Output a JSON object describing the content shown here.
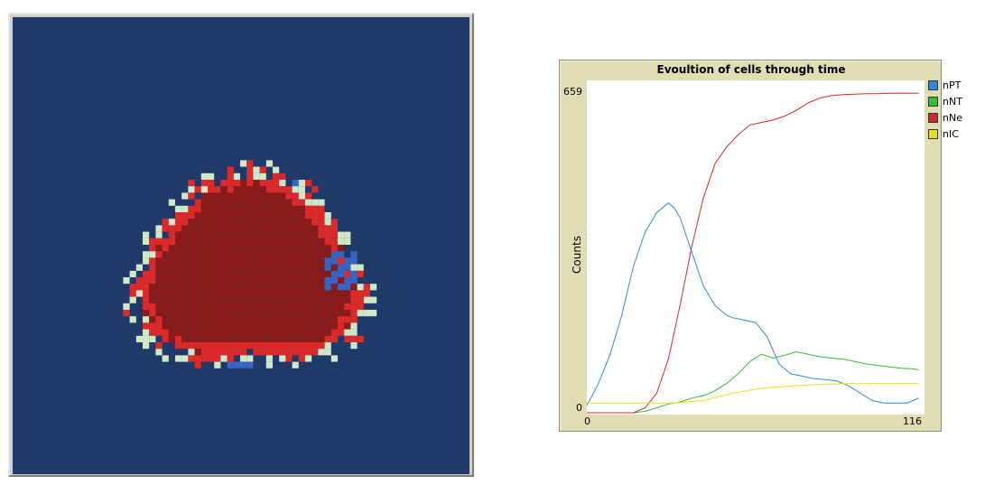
{
  "world": {
    "colors": {
      "background": "#1f3969",
      "necrotic_core": "#8a1b1b",
      "necrotic_rim": "#dc2a2a",
      "proliferative": "#cfe8c8",
      "immune": "#3765c4"
    }
  },
  "plot": {
    "title": "Evoultion of cells through time",
    "ylabel": "Counts",
    "y_max_label": "659",
    "y_min_label": "0",
    "x_min_label": "0",
    "x_max_label": "116",
    "legend": [
      {
        "name": "nPT",
        "color": "#2e8ad8"
      },
      {
        "name": "nNT",
        "color": "#2ec02e"
      },
      {
        "name": "nNe",
        "color": "#dc2626"
      },
      {
        "name": "nIC",
        "color": "#e6e21a"
      }
    ]
  },
  "chart_data": {
    "type": "line",
    "title": "Evoultion of cells through time",
    "xlabel": "",
    "ylabel": "Counts",
    "xlim": [
      0,
      116
    ],
    "ylim": [
      0,
      659
    ],
    "grid": false,
    "legend_position": "right",
    "series": [
      {
        "name": "nPT",
        "color": "#2e8ad8",
        "x": [
          0,
          4,
          8,
          12,
          16,
          20,
          24,
          28,
          30,
          32,
          36,
          40,
          44,
          48,
          50,
          54,
          58,
          62,
          66,
          70,
          74,
          78,
          82,
          86,
          90,
          94,
          98,
          102,
          106,
          110,
          114
        ],
        "y": [
          15,
          60,
          120,
          200,
          300,
          370,
          410,
          430,
          420,
          400,
          330,
          260,
          220,
          200,
          195,
          190,
          185,
          155,
          100,
          80,
          75,
          70,
          68,
          65,
          55,
          40,
          25,
          20,
          20,
          20,
          30
        ]
      },
      {
        "name": "nNT",
        "color": "#2ec02e",
        "x": [
          0,
          4,
          8,
          12,
          16,
          20,
          24,
          28,
          32,
          36,
          40,
          44,
          48,
          52,
          56,
          60,
          64,
          68,
          72,
          76,
          80,
          84,
          88,
          92,
          96,
          100,
          104,
          108,
          112,
          114
        ],
        "y": [
          0,
          0,
          0,
          0,
          0,
          3,
          10,
          18,
          22,
          30,
          35,
          45,
          60,
          80,
          105,
          120,
          112,
          118,
          125,
          120,
          115,
          112,
          110,
          105,
          100,
          97,
          94,
          91,
          90,
          88
        ]
      },
      {
        "name": "nNe",
        "color": "#dc2626",
        "x": [
          0,
          4,
          8,
          12,
          16,
          20,
          24,
          28,
          32,
          36,
          40,
          44,
          48,
          52,
          56,
          60,
          64,
          68,
          72,
          76,
          80,
          84,
          88,
          92,
          96,
          100,
          104,
          108,
          112,
          114
        ],
        "y": [
          0,
          0,
          0,
          0,
          0,
          10,
          40,
          110,
          220,
          340,
          440,
          510,
          545,
          570,
          590,
          595,
          600,
          608,
          620,
          635,
          645,
          650,
          652,
          653,
          654,
          654,
          655,
          655,
          655,
          655
        ]
      },
      {
        "name": "nIC",
        "color": "#e6e21a",
        "x": [
          0,
          10,
          20,
          30,
          40,
          50,
          60,
          70,
          80,
          90,
          100,
          110,
          114
        ],
        "y": [
          20,
          20,
          20,
          20,
          25,
          40,
          50,
          55,
          58,
          60,
          60,
          60,
          60
        ]
      }
    ]
  }
}
